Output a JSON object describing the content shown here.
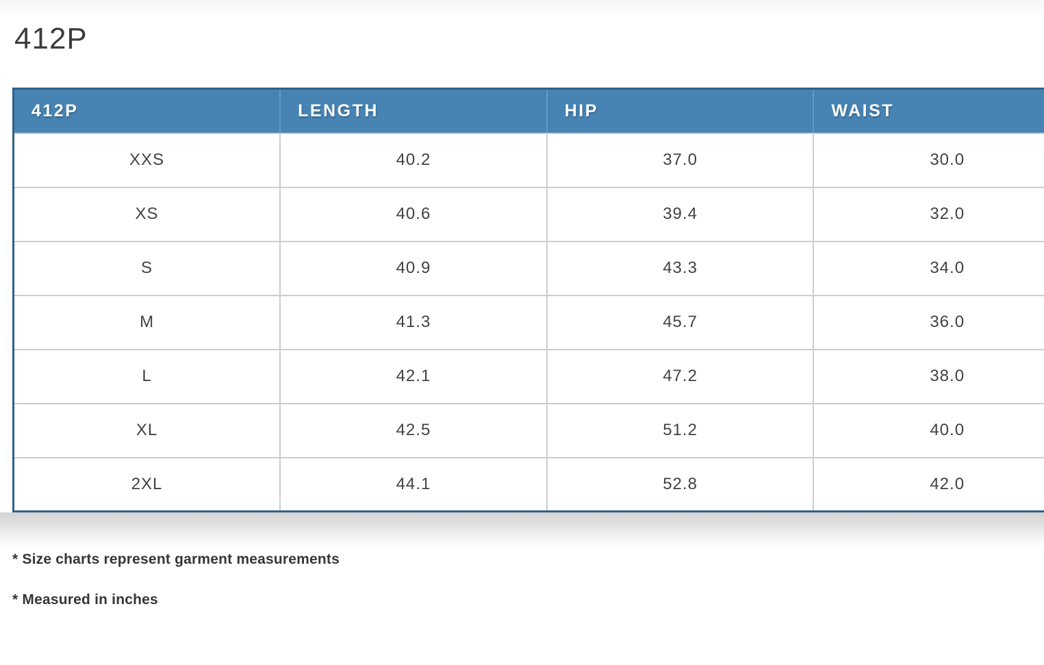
{
  "page": {
    "title": "412P",
    "footnotes": [
      "* Size charts represent garment measurements",
      "* Measured in inches"
    ]
  },
  "table": {
    "columns": [
      "412P",
      "LENGTH",
      "HIP",
      "WAIST"
    ],
    "rows": [
      {
        "size": "XXS",
        "length": "40.2",
        "hip": "37.0",
        "waist": "30.0"
      },
      {
        "size": "XS",
        "length": "40.6",
        "hip": "39.4",
        "waist": "32.0"
      },
      {
        "size": "S",
        "length": "40.9",
        "hip": "43.3",
        "waist": "34.0"
      },
      {
        "size": "M",
        "length": "41.3",
        "hip": "45.7",
        "waist": "36.0"
      },
      {
        "size": "L",
        "length": "42.1",
        "hip": "47.2",
        "waist": "38.0"
      },
      {
        "size": "XL",
        "length": "42.5",
        "hip": "51.2",
        "waist": "40.0"
      },
      {
        "size": "2XL",
        "length": "44.1",
        "hip": "52.8",
        "waist": "42.0"
      }
    ]
  },
  "chart_data": {
    "type": "table",
    "title": "412P",
    "columns": [
      "412P",
      "LENGTH",
      "HIP",
      "WAIST"
    ],
    "rows": [
      [
        "XXS",
        40.2,
        37.0,
        30.0
      ],
      [
        "XS",
        40.6,
        39.4,
        32.0
      ],
      [
        "S",
        40.9,
        43.3,
        34.0
      ],
      [
        "M",
        41.3,
        45.7,
        36.0
      ],
      [
        "L",
        42.1,
        47.2,
        38.0
      ],
      [
        "XL",
        42.5,
        51.2,
        40.0
      ],
      [
        "2XL",
        44.1,
        52.8,
        42.0
      ]
    ],
    "notes": [
      "* Size charts represent garment measurements",
      "* Measured in inches"
    ]
  },
  "colors": {
    "header_bg": "#4784b4",
    "header_text": "#ffffff",
    "table_border": "#2e6088",
    "row_divider": "#cccccc",
    "body_text": "#424242"
  }
}
